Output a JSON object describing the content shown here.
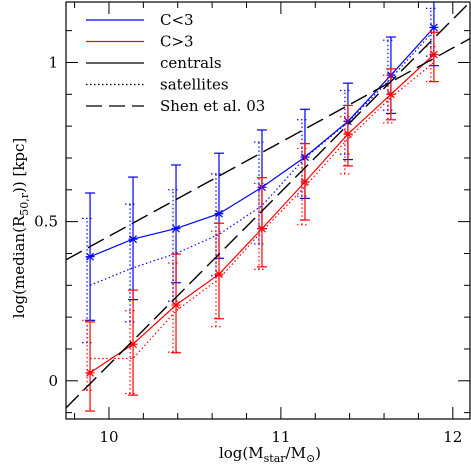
{
  "chart_data": {
    "type": "line",
    "xlabel": "log(M_star/M_⊙)",
    "ylabel": "log(median(R_50,r)) [kpc]",
    "xlim": [
      9.75,
      12.1
    ],
    "ylim": [
      -0.12,
      1.19
    ],
    "x_ticks": [
      10,
      11,
      12
    ],
    "y_ticks": [
      0,
      0.5,
      1
    ],
    "x_tick_labels": [
      "10",
      "11",
      "12"
    ],
    "y_tick_labels": [
      "0",
      "0.5",
      "1"
    ],
    "legend_position": "top-left",
    "series": [
      {
        "name": "C<3",
        "color": "#0000ff",
        "style": "solid",
        "population": "centrals",
        "x": [
          9.89,
          10.14,
          10.39,
          10.64,
          10.89,
          11.14,
          11.39,
          11.64,
          11.89
        ],
        "y": [
          0.39,
          0.445,
          0.478,
          0.525,
          0.608,
          0.703,
          0.815,
          0.96,
          1.11
        ],
        "yerr_low": [
          0.2,
          0.19,
          0.17,
          0.14,
          0.13,
          0.13,
          0.12,
          0.12,
          0.12
        ],
        "yerr_high": [
          0.2,
          0.195,
          0.2,
          0.19,
          0.18,
          0.15,
          0.12,
          0.12,
          0.085
        ]
      },
      {
        "name": "",
        "color": "#0000ff",
        "style": "dotted",
        "population": "satellites",
        "x": [
          9.89,
          10.14,
          10.39,
          10.64,
          10.89,
          11.14,
          11.39,
          11.64,
          11.89
        ],
        "y": [
          0.3,
          0.355,
          0.4,
          0.46,
          0.55,
          0.7,
          0.812,
          0.95,
          1.1
        ],
        "yerr_low": [
          0.18,
          0.17,
          0.15,
          0.13,
          0.12,
          0.12,
          0.1,
          0.1,
          0.08
        ],
        "yerr_high": [
          0.21,
          0.2,
          0.2,
          0.19,
          0.2,
          0.12,
          0.1,
          0.12,
          0.07
        ]
      },
      {
        "name": "C>3",
        "color": "#ff0000",
        "style": "solid",
        "population": "centrals",
        "x": [
          9.89,
          10.14,
          10.39,
          10.64,
          10.89,
          11.14,
          11.39,
          11.64,
          11.89
        ],
        "y": [
          0.025,
          0.115,
          0.238,
          0.335,
          0.478,
          0.625,
          0.775,
          0.9,
          1.025
        ],
        "yerr_low": [
          0.12,
          0.16,
          0.15,
          0.14,
          0.12,
          0.12,
          0.1,
          0.08,
          0.085
        ],
        "yerr_high": [
          0.16,
          0.17,
          0.16,
          0.16,
          0.16,
          0.12,
          0.09,
          0.08,
          0.07
        ]
      },
      {
        "name": "",
        "color": "#ff0000",
        "style": "dotted",
        "population": "satellites",
        "x": [
          9.89,
          10.14,
          10.39,
          10.64,
          10.89,
          11.14,
          11.39,
          11.64,
          11.89
        ],
        "y": [
          0.07,
          0.07,
          0.22,
          0.32,
          0.47,
          0.61,
          0.76,
          0.89,
          1.0
        ],
        "yerr_low": [
          0.1,
          0.11,
          0.13,
          0.15,
          0.12,
          0.12,
          0.11,
          0.08,
          0.06
        ],
        "yerr_high": [
          0.12,
          0.15,
          0.15,
          0.15,
          0.15,
          0.12,
          0.07,
          0.07,
          0.05
        ]
      },
      {
        "name": "Shen et al. 03",
        "color": "#000000",
        "style": "longdash",
        "x": [
          9.75,
          12.1
        ],
        "y": [
          0.38,
          1.075
        ]
      },
      {
        "name": "",
        "color": "#000000",
        "style": "longdash",
        "x": [
          9.75,
          12.1
        ],
        "y": [
          -0.085,
          1.19
        ]
      }
    ],
    "legend_entries": [
      {
        "label": "C<3",
        "color": "#0000ff",
        "style": "solid"
      },
      {
        "label": "C>3",
        "color": "#ff0000",
        "style": "solid"
      },
      {
        "label": "centrals",
        "color": "#000000",
        "style": "solid"
      },
      {
        "label": "satellites",
        "color": "#000000",
        "style": "dotted"
      },
      {
        "label": "Shen et al. 03",
        "color": "#000000",
        "style": "longdash"
      }
    ]
  }
}
